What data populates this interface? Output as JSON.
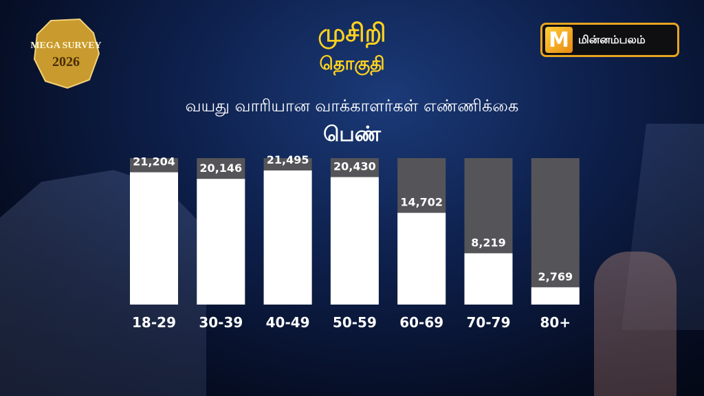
{
  "badge": {
    "line1": "MEGA SURVEY",
    "line2": "2026"
  },
  "header": {
    "title": "முசிறி",
    "subtitle": "தொகுதி"
  },
  "logo": {
    "letter": "M",
    "text": "மின்னம்பலம்"
  },
  "chart_caption": "வயது வாரியான வாக்காளர்கள் எண்ணிக்கை",
  "gender_label": "பெண்",
  "colors": {
    "accent": "#ffd21f",
    "bar_fill": "#ffffff",
    "bar_track": "#555559",
    "logo_border": "#e8a51f"
  },
  "chart_data": {
    "type": "bar",
    "title": "வயது வாரியான வாக்காளர்கள் எண்ணிக்கை",
    "categories": [
      "18-29",
      "30-39",
      "40-49",
      "50-59",
      "60-69",
      "70-79",
      "80+"
    ],
    "values": [
      21204,
      20146,
      21495,
      20430,
      14702,
      8219,
      2769
    ],
    "value_labels": [
      "21,204",
      "20,146",
      "21,495",
      "20,430",
      "14,702",
      "8,219",
      "2,769"
    ],
    "ylim": [
      0,
      27000
    ],
    "grid": false,
    "legend": "none"
  }
}
